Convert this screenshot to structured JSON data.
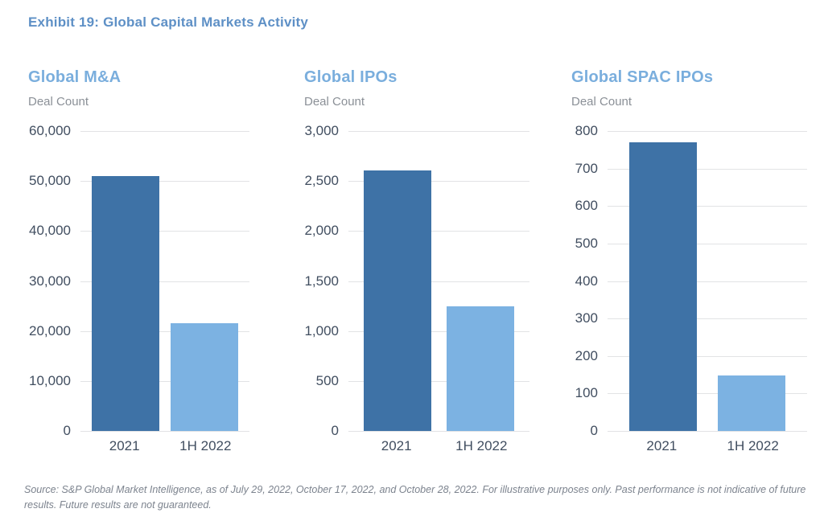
{
  "header": {
    "exhibit_title": "Exhibit 19: Global Capital Markets Activity"
  },
  "colors": {
    "exhibit_title_blue": "#5e90c6",
    "chart_title_blue": "#7aaedd",
    "bar_2021": "#3e72a6",
    "bar_1h_2022": "#7cb2e2",
    "gridline_gray": "#e2e3e5",
    "axis_text": "#414e60",
    "deal_count_gray": "#8b9097",
    "source_gray": "#7c838e"
  },
  "chart_data": [
    {
      "type": "bar",
      "title": "Global M&A",
      "ylabel": "Deal Count",
      "categories": [
        "2021",
        "1H 2022"
      ],
      "values": [
        51000,
        21500
      ],
      "ylim": [
        0,
        60000
      ],
      "ytick_labels": [
        "60,000",
        "50,000",
        "40,000",
        "30,000",
        "20,000",
        "10,000",
        "0"
      ],
      "grid": true,
      "legend": "none"
    },
    {
      "type": "bar",
      "title": "Global IPOs",
      "ylabel": "Deal Count",
      "categories": [
        "2021",
        "1H 2022"
      ],
      "values": [
        2610,
        1250
      ],
      "ylim": [
        0,
        3000
      ],
      "ytick_labels": [
        "3,000",
        "2,500",
        "2,000",
        "1,500",
        "1,000",
        "500",
        "0"
      ],
      "grid": true,
      "legend": "none"
    },
    {
      "type": "bar",
      "title": "Global SPAC IPOs",
      "ylabel": "Deal Count",
      "categories": [
        "2021",
        "1H 2022"
      ],
      "values": [
        770,
        148
      ],
      "ylim": [
        0,
        800
      ],
      "ytick_labels": [
        "800",
        "700",
        "600",
        "500",
        "400",
        "300",
        "200",
        "100",
        "0"
      ],
      "grid": true,
      "legend": "none"
    }
  ],
  "source_note": "Source: S&P Global Market Intelligence, as of July 29, 2022, October 17, 2022, and October 28, 2022. For illustrative purposes only. Past performance is not indicative of future results. Future results are not guaranteed."
}
